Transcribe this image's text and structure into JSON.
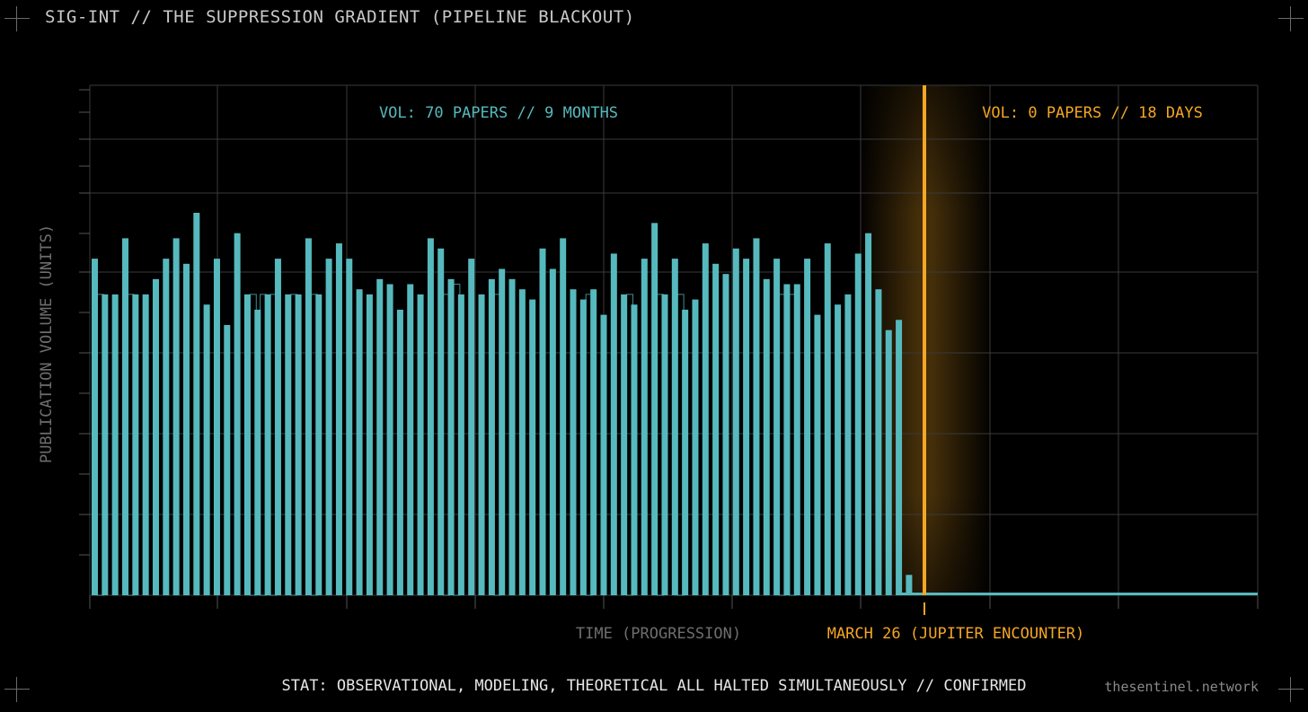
{
  "header": {
    "title": "SIG-INT // THE SUPPRESSION GRADIENT (PIPELINE BLACKOUT)"
  },
  "footer": {
    "stat": "STAT: OBSERVATIONAL, MODELING, THEORETICAL ALL HALTED SIMULTANEOUSLY // CONFIRMED",
    "credit": "thesentinel.network"
  },
  "colors": {
    "cyan": "#56b9bd",
    "orange": "#f5a623",
    "grid": "#3a3a3a",
    "muted": "#8c8c8c"
  },
  "chart_data": {
    "type": "bar",
    "title": "",
    "xlabel": "TIME (PROGRESSION)",
    "ylabel": "PUBLICATION VOLUME (UNITS)",
    "ylim": [
      0,
      10
    ],
    "grid": true,
    "annotations": {
      "left_volume": "VOL: 70 PAPERS // 9 MONTHS",
      "right_volume": "VOL: 0 PAPERS // 18 DAYS",
      "event_label": "MARCH 26 (JUPITER ENCOUNTER)"
    },
    "series": [
      {
        "name": "",
        "values": [
          6.6,
          5.9,
          5.9,
          7.0,
          5.9,
          5.9,
          6.2,
          6.6,
          7.0,
          6.5,
          7.5,
          5.7,
          6.6,
          5.3,
          7.1,
          5.9,
          5.6,
          5.9,
          6.6,
          5.9,
          5.9,
          7.0,
          5.9,
          6.6,
          6.9,
          6.6,
          6.0,
          5.9,
          6.2,
          6.1,
          5.6,
          6.1,
          5.9,
          7.0,
          6.8,
          6.2,
          5.9,
          6.6,
          5.9,
          6.2,
          6.4,
          6.2,
          6.0,
          5.8,
          6.8,
          6.4,
          7.0,
          6.0,
          5.8,
          6.0,
          5.5,
          6.7,
          5.9,
          5.7,
          6.6,
          7.3,
          5.9,
          6.6,
          5.6,
          5.8,
          6.9,
          6.5,
          6.3,
          6.8,
          6.6,
          7.0,
          6.2,
          6.6,
          6.1,
          6.1,
          6.6,
          5.5,
          6.9,
          5.7,
          5.9,
          6.7,
          7.1,
          6.0,
          5.2,
          5.4,
          0.4,
          0,
          0,
          0,
          0,
          0,
          0,
          0,
          0,
          0,
          0,
          0,
          0,
          0,
          0,
          0,
          0,
          0,
          0,
          0,
          0,
          0,
          0,
          0,
          0,
          0,
          0,
          0,
          0,
          0,
          0,
          0,
          0,
          0,
          0
        ]
      },
      {
        "name": "",
        "values": [
          0,
          5.9,
          0,
          0,
          5.9,
          0,
          0,
          0,
          0,
          0,
          0,
          0,
          0,
          0,
          0,
          0,
          5.9,
          5.9,
          5.9,
          0,
          5.9,
          0,
          5.9,
          0,
          0,
          0,
          0,
          0,
          0,
          0,
          0,
          0,
          0,
          0,
          0,
          5.9,
          6.1,
          0,
          0,
          0,
          5.9,
          0,
          0,
          0,
          0,
          0,
          0,
          0,
          0,
          5.9,
          0,
          0,
          0,
          5.9,
          0,
          0,
          5.9,
          0,
          5.9,
          0,
          0,
          0,
          0,
          0,
          0,
          0,
          0,
          0,
          5.9,
          5.9,
          0,
          0,
          0,
          0,
          0,
          0,
          0,
          0,
          0,
          0,
          0,
          0,
          0,
          0,
          0,
          0,
          0,
          0,
          0,
          0,
          0,
          0,
          0,
          0,
          0,
          0,
          0,
          0,
          0,
          0,
          0,
          0,
          0,
          0,
          0,
          0,
          0,
          0,
          0,
          0,
          0,
          0,
          0,
          0,
          0
        ]
      }
    ]
  }
}
